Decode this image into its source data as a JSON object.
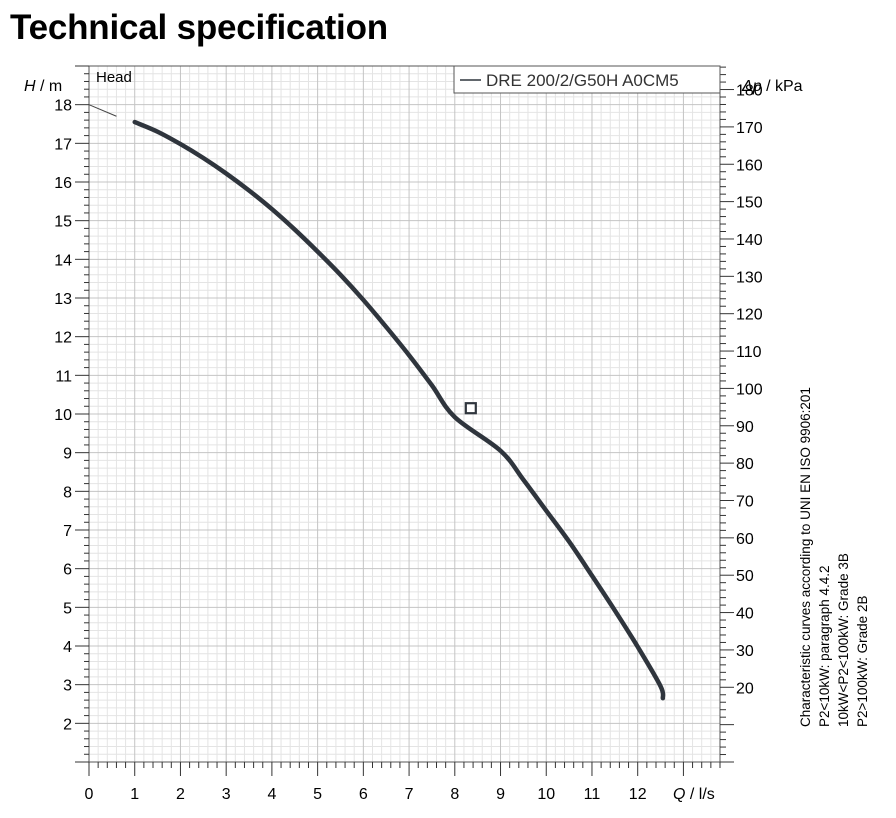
{
  "page": {
    "title": "Technical specification"
  },
  "chart_data": {
    "type": "line",
    "panel_label": "Head",
    "xlabel_symbol": "Q",
    "xlabel_unit": " / l/s",
    "ylabel_symbol": "H",
    "ylabel_unit": " / m",
    "y2label_symbol": "Δp",
    "y2label_unit": " / kPa",
    "xlim": [
      0,
      13.8
    ],
    "ylim": [
      1.0,
      19.0
    ],
    "y2lim": [
      0,
      186.3
    ],
    "x_ticks": [
      0,
      1,
      2,
      3,
      4,
      5,
      6,
      7,
      8,
      9,
      10,
      11,
      12
    ],
    "y_ticks": [
      2,
      3,
      4,
      5,
      6,
      7,
      8,
      9,
      10,
      11,
      12,
      13,
      14,
      15,
      16,
      17,
      18
    ],
    "y2_ticks": [
      20,
      30,
      40,
      50,
      60,
      70,
      80,
      90,
      100,
      110,
      120,
      130,
      140,
      150,
      160,
      170,
      180
    ],
    "grid": true,
    "legend_position": "top-right",
    "series": [
      {
        "name": "DRE 200/2/G50H A0CM5",
        "color": "#2f353d",
        "x": [
          0,
          1.0,
          1.5,
          2.0,
          2.5,
          3.0,
          3.5,
          4.0,
          4.5,
          5.0,
          5.5,
          6.0,
          6.5,
          7.0,
          7.5,
          8.0,
          8.35,
          9.0,
          9.5,
          10.0,
          10.5,
          11.0,
          11.5,
          12.0,
          12.5,
          12.55
        ],
        "y": [
          18.0,
          17.55,
          17.3,
          16.98,
          16.62,
          16.22,
          15.78,
          15.3,
          14.77,
          14.2,
          13.6,
          12.95,
          12.25,
          11.52,
          10.74,
          9.92,
          10.15,
          9.05,
          8.3,
          7.5,
          6.7,
          5.82,
          4.92,
          3.98,
          2.96,
          2.65
        ],
        "operating_point": {
          "x": 8.35,
          "y": 10.15
        }
      }
    ],
    "side_note": [
      "Characteristic curves according to UNI EN ISO 9906:201",
      "P2<10kW:  paragraph 4.4.2",
      "10kW<P2<100kW: Grade 3B",
      "P2>100kW: Grade 2B"
    ]
  }
}
